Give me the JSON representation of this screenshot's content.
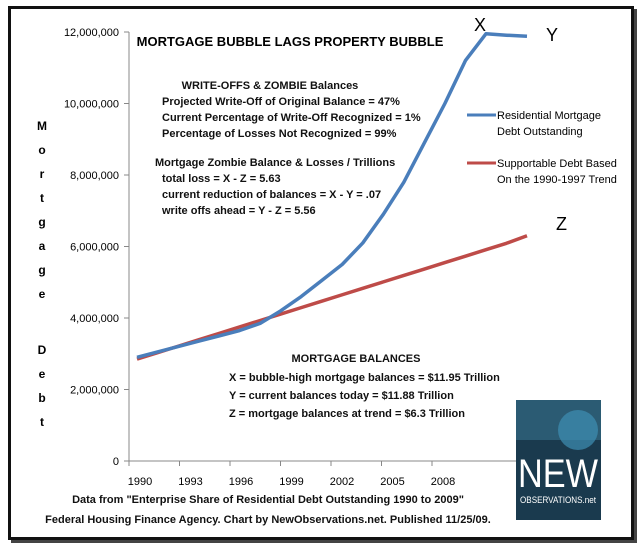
{
  "chart_data": {
    "type": "line",
    "title": "MORTGAGE BUBBLE LAGS PROPERTY BUBBLE",
    "ylabel": "Mortgage Debt",
    "xlabel": "",
    "x": [
      1990,
      1991,
      1992,
      1993,
      1994,
      1995,
      1996,
      1997,
      1998,
      1999,
      2000,
      2001,
      2002,
      2003,
      2004,
      2005,
      2006,
      2007,
      2008,
      2009
    ],
    "x_tick_labels": [
      "1990",
      "1993",
      "1996",
      "1999",
      "2002",
      "2005",
      "2008"
    ],
    "y_tick_labels": [
      "0",
      "2,000,000",
      "4,000,000",
      "6,000,000",
      "8,000,000",
      "10,000,000",
      "12,000,000"
    ],
    "ylim": [
      0,
      12000000
    ],
    "grid": false,
    "legend_position": "right",
    "series": [
      {
        "name": "Residential Mortgage Debt Outstanding",
        "color": "#4a7ebb",
        "values": [
          2900000,
          3050000,
          3200000,
          3350000,
          3500000,
          3650000,
          3850000,
          4200000,
          4600000,
          5050000,
          5500000,
          6100000,
          6900000,
          7800000,
          8900000,
          10000000,
          11200000,
          11950000,
          11910000,
          11880000
        ]
      },
      {
        "name": "Supportable Debt Based On the 1990-1997 Trend",
        "color": "#be4b48",
        "values": [
          2850000,
          3030000,
          3210000,
          3390000,
          3570000,
          3750000,
          3930000,
          4110000,
          4290000,
          4470000,
          4650000,
          4830000,
          5010000,
          5190000,
          5370000,
          5550000,
          5730000,
          5910000,
          6090000,
          6300000
        ]
      }
    ],
    "legend": [
      "Residential Mortgage",
      "Debt Outstanding",
      "Supportable Debt Based",
      "On the 1990-1997 Trend"
    ],
    "point_labels": {
      "x": "X",
      "y": "Y",
      "z": "Z"
    },
    "annotations": {
      "writeoffs": [
        "WRITE-OFFS & ZOMBIE Balances",
        "Projected Write-Off of Original Balance = 47%",
        "Current Percentage of Write-Off Recognized = 1%",
        "Percentage of Losses Not Recognized = 99%"
      ],
      "zombie": [
        "Mortgage Zombie Balance & Losses / Trillions",
        "total loss = X - Z = 5.63",
        "current reduction of balances = X - Y = .07",
        "write offs ahead  =  Y - Z = 5.56"
      ],
      "balances": [
        "MORTGAGE BALANCES",
        "X = bubble-high mortgage balances = $11.95 Trillion",
        "Y = current balances today = $11.88 Trillion",
        "Z = mortgage balances at trend = $6.3 Trillion"
      ]
    },
    "source": [
      "Data from \"Enterprise Share of Residential Debt Outstanding 1990 to 2009\"",
      "Federal Housing Finance Agency. Chart by NewObservations.net. Published 11/25/09."
    ],
    "logo": {
      "big": "NEW",
      "small": "OBSERVATIONS.net"
    }
  }
}
